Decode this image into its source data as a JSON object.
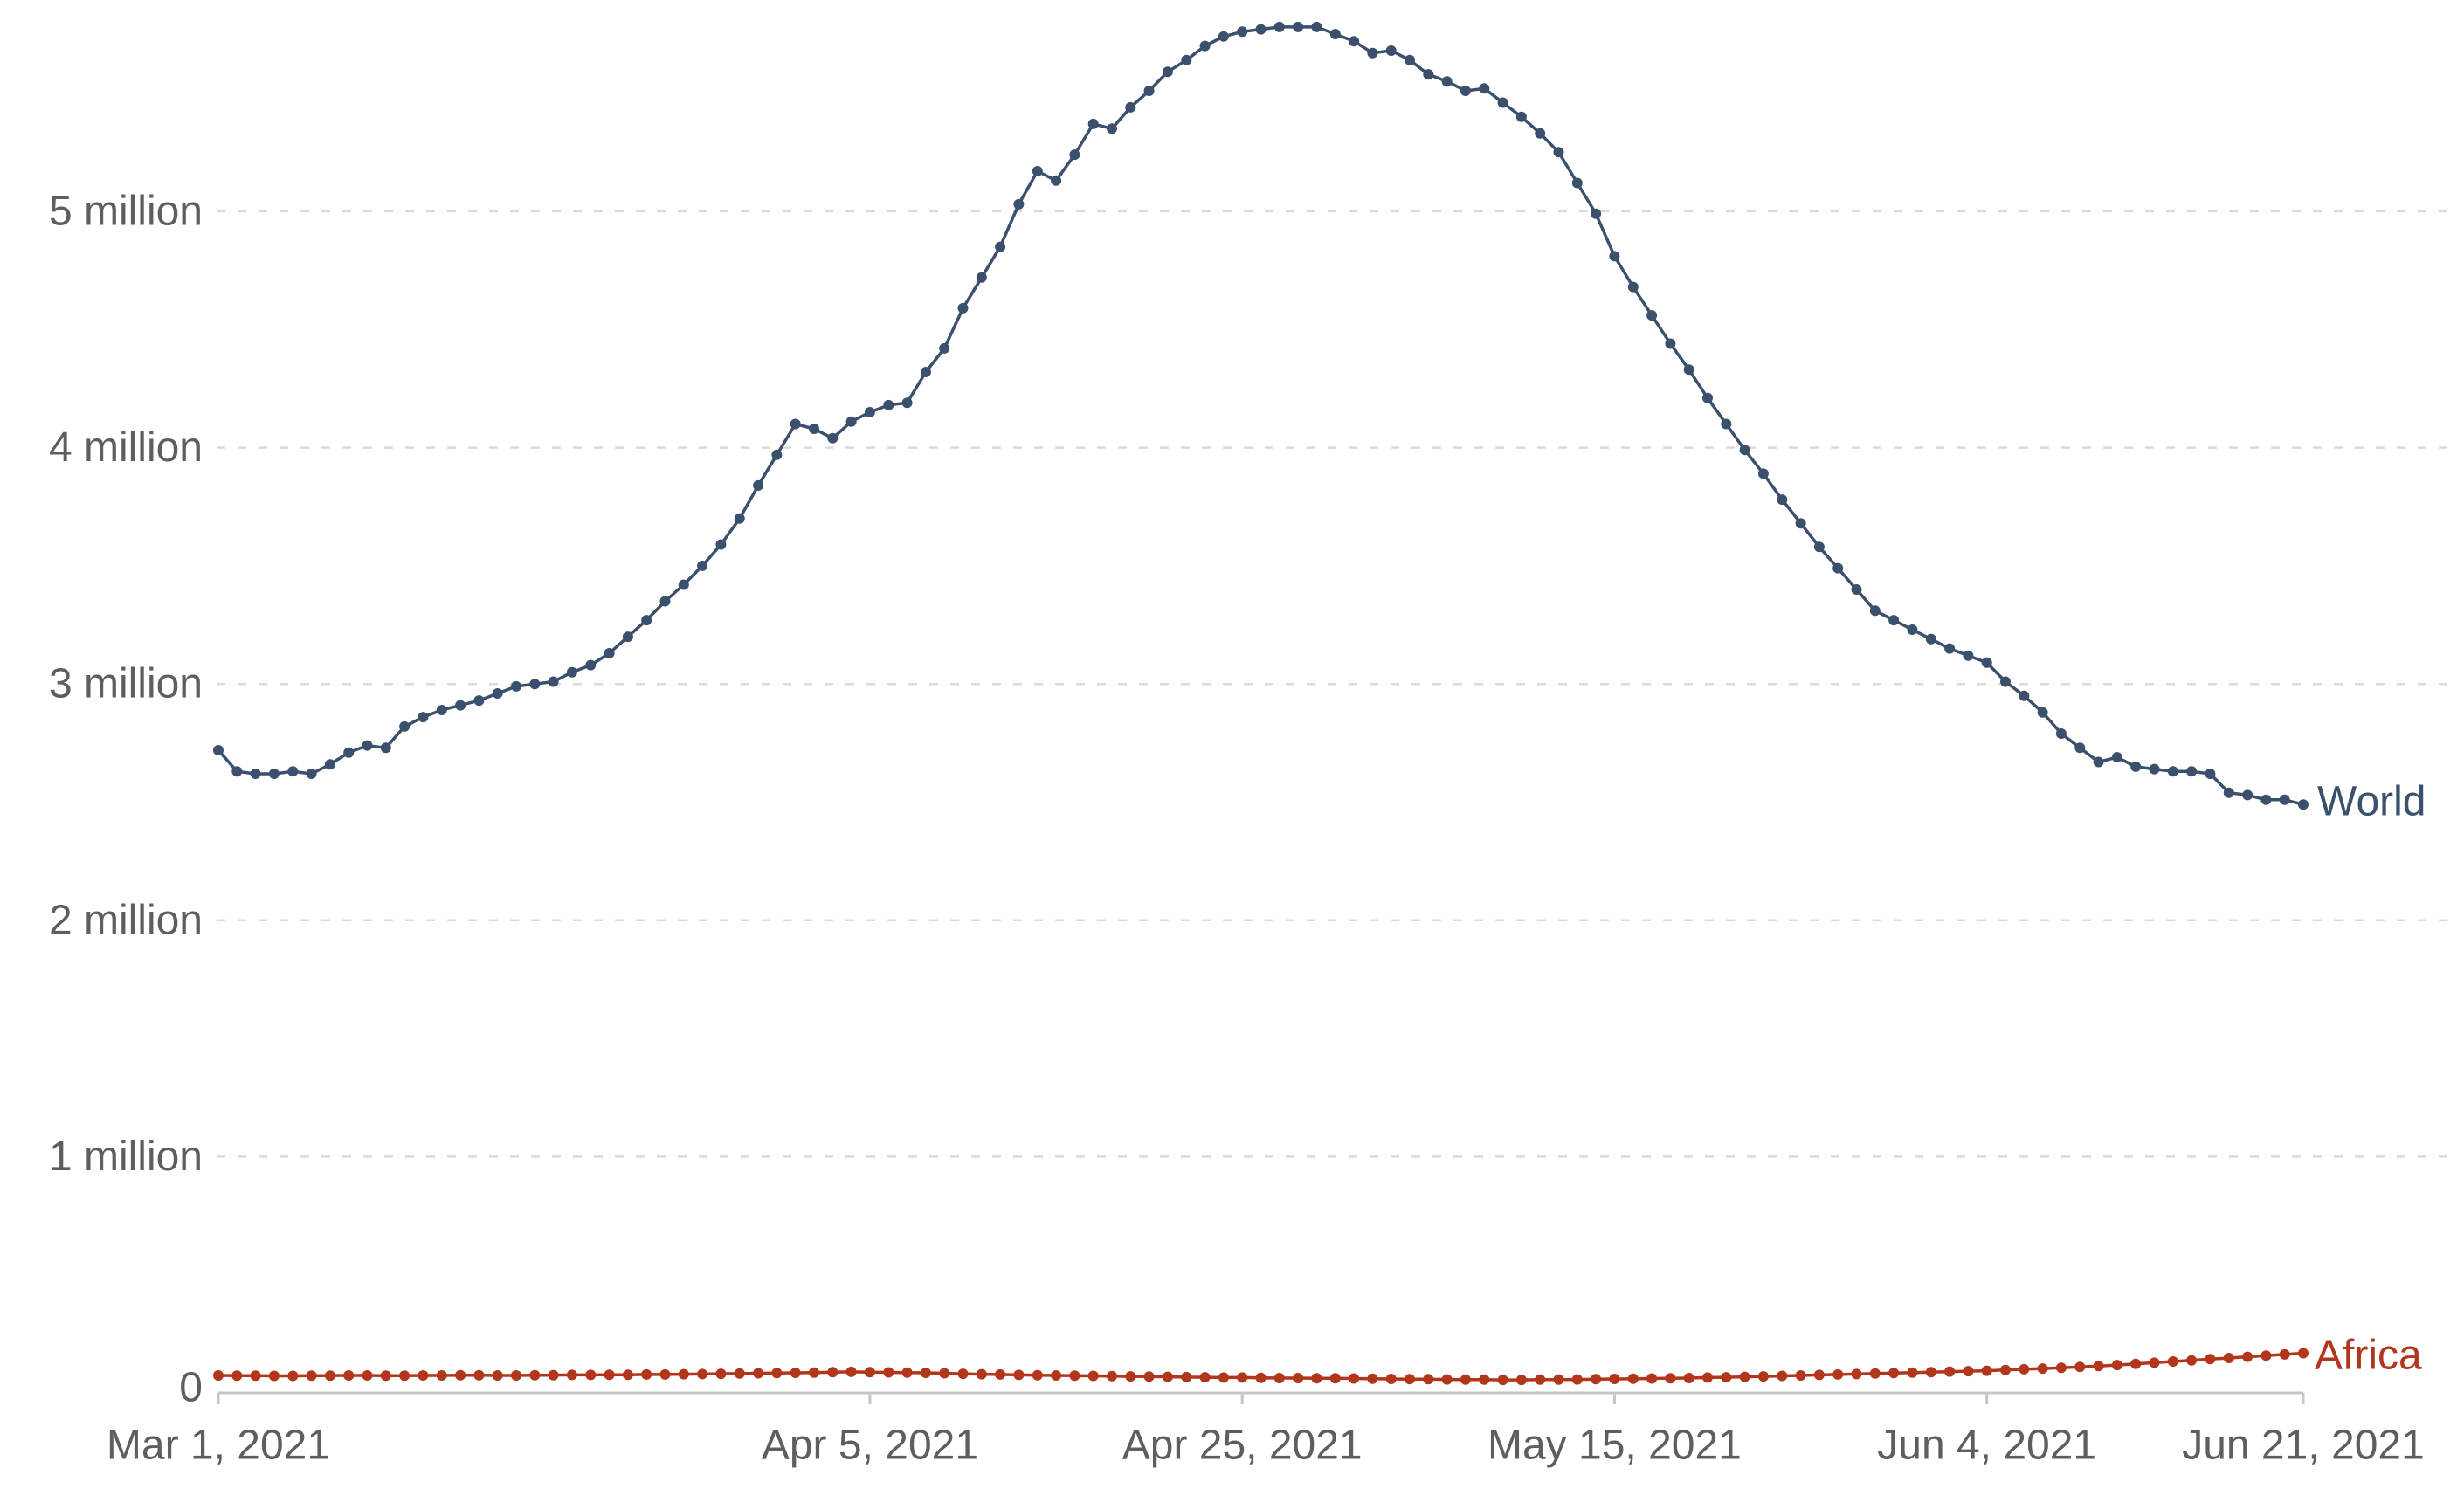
{
  "chart_data": {
    "type": "line",
    "description": "Two line series with daily dot markers from Mar 1, 2021 to Jun 21, 2021, values in cases",
    "x_axis": {
      "start_label": "Mar 1, 2021",
      "end_label": "Jun 21, 2021",
      "tick_labels": [
        "Mar 1, 2021",
        "Apr 5, 2021",
        "Apr 25, 2021",
        "May 15, 2021",
        "Jun 4, 2021",
        "Jun 21, 2021"
      ],
      "tick_day_offsets": [
        0,
        35,
        55,
        75,
        95,
        112
      ],
      "total_days": 112,
      "x_unit": "days since Mar 1, 2021 (one point per day)"
    },
    "y_axis": {
      "tick_labels": [
        "0",
        "1 million",
        "2 million",
        "3 million",
        "4 million",
        "5 million"
      ],
      "tick_values_millions": [
        0,
        1,
        2,
        3,
        4,
        5
      ],
      "ylim_millions": [
        0,
        5.9
      ],
      "grid": "dashed horizontal gridlines"
    },
    "legend_position": "labels at right end of each line",
    "series": [
      {
        "name": "World",
        "color": "#3B506C",
        "unit": "millions",
        "values_millions": [
          2.72,
          2.63,
          2.62,
          2.62,
          2.63,
          2.62,
          2.66,
          2.71,
          2.74,
          2.73,
          2.82,
          2.86,
          2.89,
          2.91,
          2.93,
          2.96,
          2.99,
          3.0,
          3.01,
          3.05,
          3.08,
          3.13,
          3.2,
          3.27,
          3.35,
          3.42,
          3.5,
          3.59,
          3.7,
          3.84,
          3.97,
          4.1,
          4.08,
          4.04,
          4.11,
          4.15,
          4.18,
          4.19,
          4.32,
          4.42,
          4.59,
          4.72,
          4.85,
          5.03,
          5.17,
          5.13,
          5.24,
          5.37,
          5.35,
          5.44,
          5.51,
          5.59,
          5.64,
          5.7,
          5.74,
          5.76,
          5.77,
          5.78,
          5.78,
          5.78,
          5.75,
          5.72,
          5.67,
          5.68,
          5.64,
          5.58,
          5.55,
          5.51,
          5.52,
          5.46,
          5.4,
          5.33,
          5.25,
          5.12,
          4.99,
          4.81,
          4.68,
          4.56,
          4.44,
          4.33,
          4.21,
          4.1,
          3.99,
          3.89,
          3.78,
          3.68,
          3.58,
          3.49,
          3.4,
          3.31,
          3.27,
          3.23,
          3.19,
          3.15,
          3.12,
          3.09,
          3.01,
          2.95,
          2.88,
          2.79,
          2.73,
          2.67,
          2.69,
          2.65,
          2.64,
          2.63,
          2.63,
          2.62,
          2.54,
          2.53,
          2.51,
          2.51,
          2.49
        ]
      },
      {
        "name": "Africa",
        "color": "#B1361C",
        "unit": "millions",
        "values_millions": [
          0.074,
          0.073,
          0.073,
          0.072,
          0.072,
          0.073,
          0.073,
          0.074,
          0.074,
          0.073,
          0.073,
          0.074,
          0.074,
          0.075,
          0.075,
          0.074,
          0.074,
          0.075,
          0.075,
          0.076,
          0.076,
          0.077,
          0.077,
          0.078,
          0.078,
          0.079,
          0.08,
          0.081,
          0.082,
          0.083,
          0.084,
          0.085,
          0.086,
          0.088,
          0.089,
          0.088,
          0.087,
          0.086,
          0.085,
          0.083,
          0.081,
          0.079,
          0.078,
          0.076,
          0.075,
          0.074,
          0.073,
          0.072,
          0.071,
          0.07,
          0.069,
          0.068,
          0.067,
          0.066,
          0.065,
          0.065,
          0.064,
          0.063,
          0.063,
          0.062,
          0.062,
          0.061,
          0.06,
          0.059,
          0.058,
          0.058,
          0.057,
          0.056,
          0.056,
          0.055,
          0.055,
          0.056,
          0.056,
          0.057,
          0.058,
          0.059,
          0.06,
          0.061,
          0.062,
          0.063,
          0.065,
          0.066,
          0.068,
          0.07,
          0.072,
          0.074,
          0.076,
          0.078,
          0.08,
          0.082,
          0.084,
          0.086,
          0.088,
          0.09,
          0.092,
          0.094,
          0.097,
          0.1,
          0.103,
          0.106,
          0.11,
          0.114,
          0.118,
          0.123,
          0.128,
          0.133,
          0.138,
          0.143,
          0.148,
          0.153,
          0.158,
          0.163,
          0.168
        ]
      }
    ]
  },
  "colors": {
    "background": "#FFFFFF",
    "gridline": "#DADADA",
    "axis_line": "#C6C6C6",
    "axis_text": "#5E5E5E",
    "world_series": "#3B506C",
    "africa_series": "#B1361C"
  }
}
